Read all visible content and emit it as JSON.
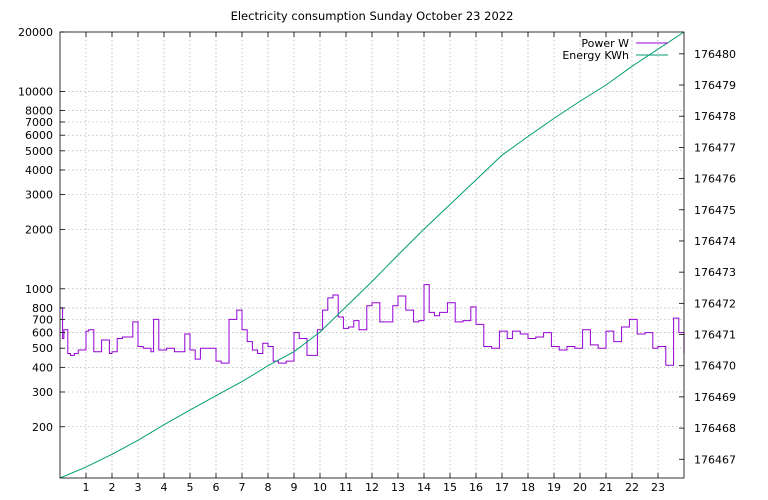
{
  "chart_data": {
    "type": "line",
    "title": "Electricity consumption Sunday October 23 2022",
    "xlabel": "",
    "ylabel": "",
    "y2label": "",
    "x_range": [
      0,
      24
    ],
    "x_ticks": [
      "1",
      "2",
      "3",
      "4",
      "5",
      "6",
      "7",
      "8",
      "9",
      "10",
      "11",
      "12",
      "13",
      "14",
      "15",
      "16",
      "17",
      "18",
      "19",
      "20",
      "21",
      "22",
      "23"
    ],
    "y_scale": "log",
    "ylim": [
      110,
      20000
    ],
    "y_ticks": [
      {
        "value": 200,
        "label": "200"
      },
      {
        "value": 300,
        "label": "300"
      },
      {
        "value": 400,
        "label": "400"
      },
      {
        "value": 500,
        "label": "500"
      },
      {
        "value": 600,
        "label": "600"
      },
      {
        "value": 700,
        "label": "700"
      },
      {
        "value": 800,
        "label": "800"
      },
      {
        "value": 1000,
        "label": "1000"
      },
      {
        "value": 2000,
        "label": "2000"
      },
      {
        "value": 3000,
        "label": "3000"
      },
      {
        "value": 4000,
        "label": "4000"
      },
      {
        "value": 5000,
        "label": "5000"
      },
      {
        "value": 6000,
        "label": "6000"
      },
      {
        "value": 7000,
        "label": "7000"
      },
      {
        "value": 8000,
        "label": "8000"
      },
      {
        "value": 10000,
        "label": "10000"
      },
      {
        "value": 20000,
        "label": "20000"
      }
    ],
    "y2_scale": "log",
    "y2lim": [
      176466.4,
      176480.7
    ],
    "y2_ticks": [
      "176467",
      "176468",
      "176469",
      "176470",
      "176471",
      "176472",
      "176473",
      "176474",
      "176475",
      "176476",
      "176477",
      "176478",
      "176479",
      "176480"
    ],
    "grid": true,
    "legend_position": "top-right",
    "series": [
      {
        "name": "Power W",
        "axis": "y",
        "color": "#9400d3",
        "x": [
          0,
          0.1,
          0.15,
          0.3,
          0.4,
          0.55,
          0.7,
          1.0,
          1.1,
          1.3,
          1.4,
          1.6,
          1.9,
          2.0,
          2.2,
          2.4,
          2.6,
          2.8,
          3.0,
          3.2,
          3.5,
          3.6,
          3.8,
          4.1,
          4.4,
          4.6,
          4.8,
          5.0,
          5.2,
          5.4,
          5.6,
          5.8,
          6.0,
          6.2,
          6.5,
          6.8,
          7.0,
          7.2,
          7.4,
          7.6,
          7.8,
          8.0,
          8.2,
          8.4,
          8.7,
          9.0,
          9.2,
          9.5,
          9.7,
          9.9,
          10.1,
          10.3,
          10.5,
          10.7,
          10.9,
          11.1,
          11.3,
          11.5,
          11.8,
          12.0,
          12.3,
          12.6,
          12.8,
          13.0,
          13.3,
          13.6,
          13.8,
          14.0,
          14.2,
          14.4,
          14.6,
          14.9,
          15.2,
          15.5,
          15.8,
          16.0,
          16.3,
          16.6,
          16.9,
          17.2,
          17.4,
          17.7,
          18.0,
          18.3,
          18.6,
          18.9,
          19.2,
          19.5,
          19.8,
          20.1,
          20.4,
          20.7,
          21.0,
          21.3,
          21.6,
          21.9,
          22.2,
          22.5,
          22.8,
          23.0,
          23.3,
          23.6,
          23.8,
          24.0
        ],
        "values": [
          800,
          560,
          620,
          470,
          460,
          470,
          490,
          610,
          620,
          480,
          480,
          550,
          470,
          480,
          560,
          570,
          570,
          680,
          510,
          500,
          480,
          700,
          490,
          500,
          480,
          480,
          590,
          490,
          440,
          500,
          500,
          500,
          430,
          420,
          700,
          780,
          620,
          540,
          490,
          470,
          530,
          510,
          430,
          420,
          430,
          600,
          560,
          460,
          460,
          620,
          780,
          900,
          930,
          720,
          630,
          640,
          690,
          620,
          820,
          850,
          680,
          680,
          820,
          920,
          780,
          680,
          690,
          1050,
          760,
          730,
          760,
          850,
          680,
          690,
          810,
          660,
          510,
          500,
          610,
          560,
          610,
          590,
          560,
          570,
          600,
          510,
          490,
          510,
          500,
          620,
          520,
          500,
          610,
          540,
          640,
          700,
          590,
          600,
          500,
          510,
          410,
          710,
          600,
          470
        ]
      },
      {
        "name": "Energy KWh",
        "axis": "y2",
        "color": "#009e73",
        "x": [
          0,
          1,
          2,
          3,
          4,
          5,
          6,
          7,
          8,
          9,
          10,
          11,
          12,
          13,
          14,
          15,
          16,
          17,
          18,
          19,
          20,
          21,
          22,
          23,
          24
        ],
        "values": [
          176466.4,
          176466.75,
          176467.16,
          176467.61,
          176468.11,
          176468.58,
          176469.04,
          176469.49,
          176470.0,
          176470.45,
          176471.08,
          176471.89,
          176472.7,
          176473.55,
          176474.38,
          176475.17,
          176475.96,
          176476.75,
          176477.35,
          176477.93,
          176478.48,
          176479.0,
          176479.6,
          176480.15,
          176480.7
        ]
      }
    ]
  }
}
